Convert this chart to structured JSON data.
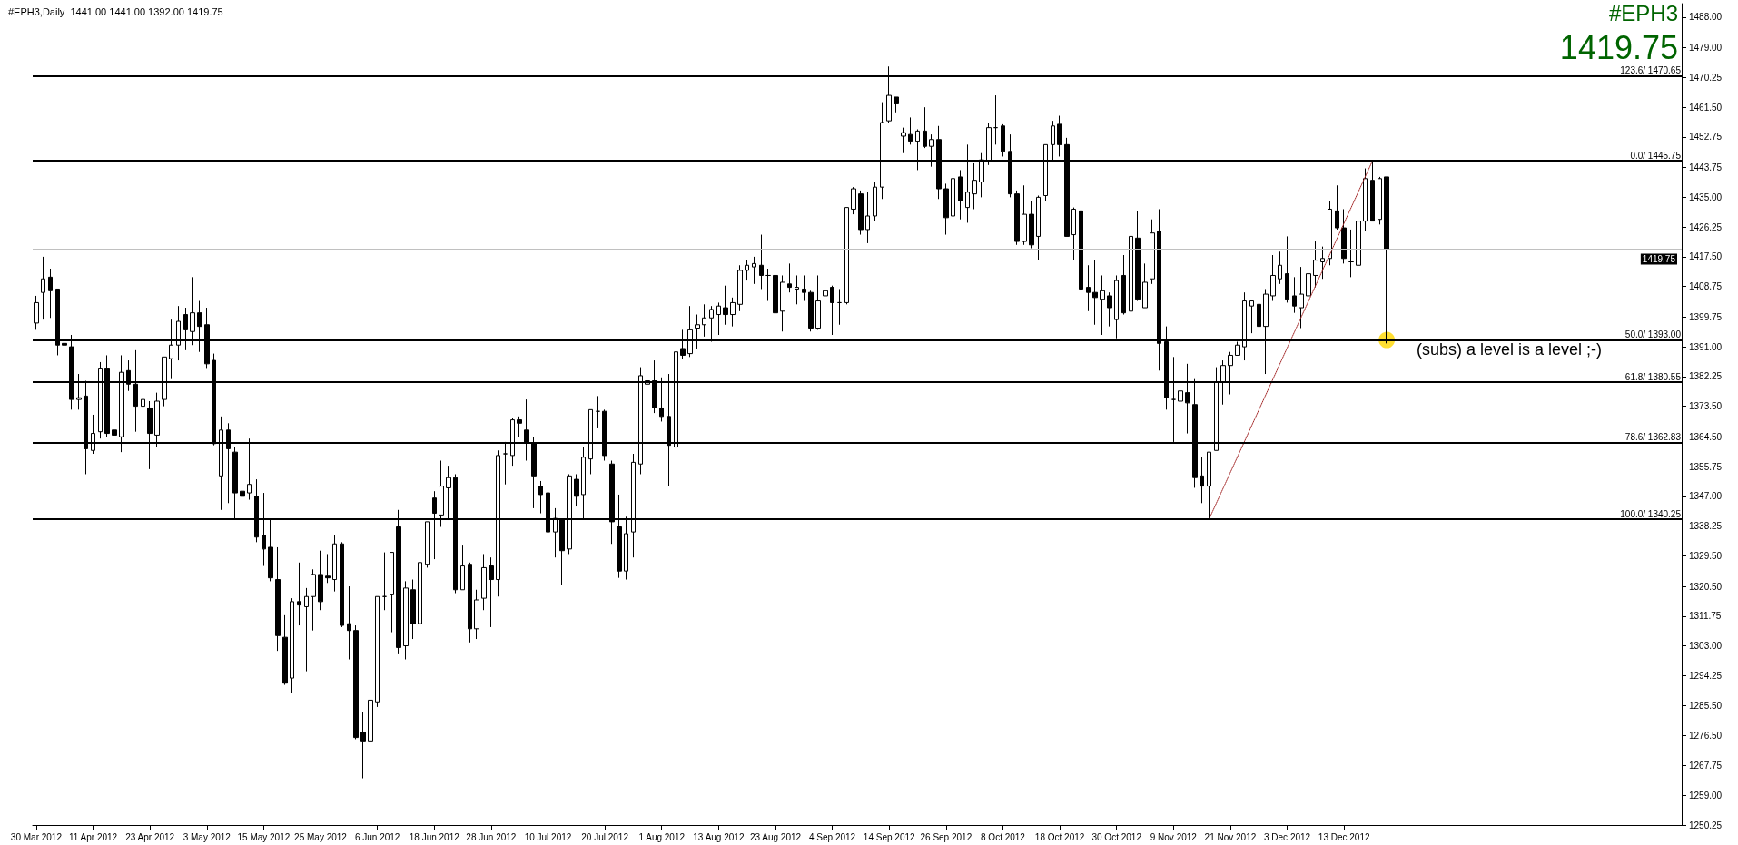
{
  "chart_data": {
    "type": "candlestick",
    "title": "#EPH3,Daily  1441.00 1441.00 1392.00 1419.75",
    "color": "#000000",
    "categories": [
      "30 Mar 2012",
      null,
      null,
      null,
      null,
      null,
      null,
      null,
      "11 Apr 2012",
      null,
      null,
      null,
      null,
      null,
      null,
      null,
      "23 Apr 2012",
      null,
      null,
      null,
      null,
      null,
      null,
      null,
      "3 May 2012",
      null,
      null,
      null,
      null,
      null,
      null,
      null,
      "15 May 2012",
      null,
      null,
      null,
      null,
      null,
      null,
      null,
      "25 May 2012",
      null,
      null,
      null,
      null,
      null,
      null,
      null,
      "6 Jun 2012",
      null,
      null,
      null,
      null,
      null,
      null,
      null,
      "18 Jun 2012",
      null,
      null,
      null,
      null,
      null,
      null,
      null,
      "28 Jun 2012",
      null,
      null,
      null,
      null,
      null,
      null,
      null,
      "10 Jul 2012",
      null,
      null,
      null,
      null,
      null,
      null,
      null,
      "20 Jul 2012",
      null,
      null,
      null,
      null,
      null,
      null,
      null,
      "1 Aug 2012",
      null,
      null,
      null,
      null,
      null,
      null,
      null,
      "13 Aug 2012",
      null,
      null,
      null,
      null,
      null,
      null,
      null,
      "23 Aug 2012",
      null,
      null,
      null,
      null,
      null,
      null,
      null,
      "4 Sep 2012",
      null,
      null,
      null,
      null,
      null,
      null,
      null,
      "14 Sep 2012",
      null,
      null,
      null,
      null,
      null,
      null,
      null,
      "26 Sep 2012",
      null,
      null,
      null,
      null,
      null,
      null,
      null,
      "8 Oct 2012",
      null,
      null,
      null,
      null,
      null,
      null,
      null,
      "18 Oct 2012",
      null,
      null,
      null,
      null,
      null,
      null,
      null,
      "30 Oct 2012",
      null,
      null,
      null,
      null,
      null,
      null,
      null,
      "9 Nov 2012",
      null,
      null,
      null,
      null,
      null,
      null,
      null,
      "21 Nov 2012",
      null,
      null,
      null,
      null,
      null,
      null,
      null,
      "3 Dec 2012",
      null,
      null,
      null,
      null,
      null,
      null,
      null,
      "13 Dec 2012",
      null,
      null,
      null,
      null,
      null,
      null,
      null,
      null,
      null,
      null,
      null,
      null,
      null,
      null,
      null,
      null,
      null,
      null,
      null,
      null,
      null,
      null,
      null,
      null,
      null,
      null,
      null,
      null,
      null,
      null,
      null,
      null,
      null,
      null,
      null,
      null,
      null,
      null,
      null,
      null,
      null,
      null,
      null,
      null,
      null,
      null,
      null
    ],
    "ohlc": [
      [
        1398,
        1406,
        1396,
        1404
      ],
      [
        1407,
        1417.5,
        1399,
        1411
      ],
      [
        1411.5,
        1414,
        1399.5,
        1407.5
      ],
      [
        1408,
        1408,
        1388.5,
        1391.5
      ],
      [
        1392,
        1397.5,
        1384.5,
        1391.5
      ],
      [
        1391,
        1394.5,
        1372.5,
        1375.5
      ],
      [
        1375.5,
        1383,
        1372.5,
        1376
      ],
      [
        1376.5,
        1381,
        1353.5,
        1361
      ],
      [
        1360.5,
        1371,
        1359.5,
        1365.5
      ],
      [
        1366,
        1386.5,
        1364,
        1384.5
      ],
      [
        1384.5,
        1388.5,
        1364.5,
        1365.5
      ],
      [
        1366.5,
        1375.5,
        1361.5,
        1365
      ],
      [
        1364.5,
        1388.5,
        1360,
        1383.5
      ],
      [
        1384,
        1387,
        1378,
        1380
      ],
      [
        1380,
        1390,
        1366,
        1373.5
      ],
      [
        1373.5,
        1383.5,
        1372,
        1375.5
      ],
      [
        1373,
        1375,
        1355,
        1365.5
      ],
      [
        1365,
        1377.5,
        1361.5,
        1375
      ],
      [
        1375.5,
        1388,
        1373.5,
        1388
      ],
      [
        1387.5,
        1399,
        1381.5,
        1391.5
      ],
      [
        1391.5,
        1403,
        1387,
        1398.5
      ],
      [
        1400.5,
        1402.5,
        1390,
        1396
      ],
      [
        1395.5,
        1411.5,
        1391.5,
        1401
      ],
      [
        1401,
        1404.5,
        1389.5,
        1397
      ],
      [
        1397.5,
        1402.5,
        1384.5,
        1386
      ],
      [
        1387,
        1389,
        1362,
        1362.5
      ],
      [
        1353,
        1370.5,
        1343,
        1366.5
      ],
      [
        1366.5,
        1368.5,
        1345,
        1361
      ],
      [
        1360,
        1361.5,
        1340.5,
        1348
      ],
      [
        1348.5,
        1364.5,
        1345,
        1347
      ],
      [
        1348,
        1364,
        1346,
        1350.5
      ],
      [
        1347,
        1352,
        1333.5,
        1335
      ],
      [
        1335.5,
        1348,
        1326.5,
        1331.5
      ],
      [
        1332,
        1340.5,
        1322,
        1323
      ],
      [
        1322.5,
        1332,
        1301.5,
        1306
      ],
      [
        1305.5,
        1312,
        1291.5,
        1292
      ],
      [
        1293.5,
        1317,
        1289,
        1316
      ],
      [
        1316,
        1327.5,
        1309,
        1315
      ],
      [
        1314.5,
        1320,
        1295.5,
        1317.5
      ],
      [
        1317.5,
        1325.5,
        1307.5,
        1324
      ],
      [
        1324,
        1331,
        1313.5,
        1316
      ],
      [
        1323.5,
        1330,
        1321.5,
        1323
      ],
      [
        1322.5,
        1335.5,
        1319,
        1333
      ],
      [
        1333,
        1333.5,
        1308.5,
        1309
      ],
      [
        1309.5,
        1320.5,
        1299,
        1307.5
      ],
      [
        1307.5,
        1309,
        1275.5,
        1276
      ],
      [
        1277.5,
        1283.5,
        1264,
        1275
      ],
      [
        1275,
        1288.5,
        1270,
        1287
      ],
      [
        1286.5,
        1317.5,
        1285,
        1317.5
      ],
      [
        1317.5,
        1330.5,
        1313.5,
        1317.5
      ],
      [
        1318,
        1330.5,
        1307,
        1330.5
      ],
      [
        1338,
        1343,
        1300.5,
        1302.5
      ],
      [
        1303,
        1322,
        1299,
        1320
      ],
      [
        1319.5,
        1322.5,
        1305,
        1309.5
      ],
      [
        1309.5,
        1329,
        1307,
        1327.5
      ],
      [
        1327,
        1339.5,
        1326,
        1339.5
      ],
      [
        1346.5,
        1348.5,
        1328.5,
        1342
      ],
      [
        1341.5,
        1357.5,
        1338,
        1350
      ],
      [
        1349.5,
        1356,
        1340,
        1352.5
      ],
      [
        1352.5,
        1353.5,
        1318.5,
        1319.5
      ],
      [
        1319.5,
        1332.5,
        1319.5,
        1326.5
      ],
      [
        1327,
        1327.5,
        1304,
        1308
      ],
      [
        1308,
        1319.5,
        1305,
        1316.5
      ],
      [
        1317,
        1330,
        1313.5,
        1326
      ],
      [
        1326.5,
        1329,
        1308.5,
        1322.5
      ],
      [
        1322.5,
        1360.5,
        1317.5,
        1359
      ],
      [
        1359.5,
        1363,
        1350.5,
        1359.5
      ],
      [
        1359,
        1370,
        1356,
        1369.5
      ],
      [
        1369.5,
        1370.5,
        1364.5,
        1368.5
      ],
      [
        1366.5,
        1375.5,
        1357.5,
        1363
      ],
      [
        1362.5,
        1364.5,
        1343.5,
        1353
      ],
      [
        1350,
        1351.5,
        1342,
        1347.5
      ],
      [
        1348,
        1357.5,
        1331.5,
        1336.5
      ],
      [
        1336.5,
        1343.5,
        1329,
        1340.5
      ],
      [
        1340,
        1340.5,
        1321,
        1331
      ],
      [
        1331.5,
        1353.5,
        1330,
        1353
      ],
      [
        1352,
        1353.5,
        1344,
        1347
      ],
      [
        1347.5,
        1361.5,
        1340.5,
        1358.5
      ],
      [
        1358,
        1372.5,
        1353.5,
        1372.5
      ],
      [
        1372,
        1376.5,
        1367,
        1372
      ],
      [
        1372,
        1372.5,
        1357.5,
        1359
      ],
      [
        1356.5,
        1357.5,
        1333,
        1339.5
      ],
      [
        1338,
        1347.5,
        1323,
        1325
      ],
      [
        1325,
        1341,
        1322.5,
        1336
      ],
      [
        1336.5,
        1359.5,
        1329,
        1357
      ],
      [
        1356.5,
        1385,
        1353.5,
        1382.5
      ],
      [
        1380,
        1388,
        1376,
        1381
      ],
      [
        1381,
        1387,
        1371.5,
        1373
      ],
      [
        1373,
        1382,
        1369,
        1370.5
      ],
      [
        1370.5,
        1383,
        1350,
        1362
      ],
      [
        1361.5,
        1390.5,
        1361,
        1389.5
      ],
      [
        1390.5,
        1396,
        1387.5,
        1388.5
      ],
      [
        1389,
        1403,
        1388,
        1396
      ],
      [
        1396.5,
        1400.5,
        1390.5,
        1397.5
      ],
      [
        1397.5,
        1403.5,
        1394,
        1399.5
      ],
      [
        1399.5,
        1403,
        1392.5,
        1402
      ],
      [
        1400.5,
        1404,
        1394.5,
        1403
      ],
      [
        1402.5,
        1409,
        1397.5,
        1400.5
      ],
      [
        1400.5,
        1405.5,
        1397,
        1404
      ],
      [
        1403.5,
        1415,
        1401.5,
        1413.5
      ],
      [
        1413.5,
        1416.5,
        1410.5,
        1415
      ],
      [
        1414.5,
        1417.5,
        1409.5,
        1415.5
      ],
      [
        1415,
        1424,
        1408,
        1412
      ],
      [
        1412,
        1414,
        1404.5,
        1412
      ],
      [
        1412,
        1417.5,
        1398,
        1401
      ],
      [
        1401.5,
        1412,
        1395.5,
        1410
      ],
      [
        1409.5,
        1415.5,
        1407,
        1408.5
      ],
      [
        1408,
        1412,
        1403.5,
        1408.5
      ],
      [
        1408,
        1412,
        1404.5,
        1407
      ],
      [
        1407,
        1407.5,
        1395.5,
        1396.5
      ],
      [
        1396.5,
        1412,
        1396,
        1404.5
      ],
      [
        1406,
        1409,
        1396.5,
        1407.5
      ],
      [
        1408.5,
        1409,
        1394.5,
        1404
      ],
      [
        1404,
        1408,
        1397.5,
        1404
      ],
      [
        1404,
        1432,
        1403.5,
        1432
      ],
      [
        1431.5,
        1438,
        1430,
        1437.5
      ],
      [
        1436,
        1437,
        1424,
        1425.5
      ],
      [
        1425.5,
        1436.5,
        1421.5,
        1429.5
      ],
      [
        1429.5,
        1439.5,
        1428,
        1438
      ],
      [
        1438,
        1463,
        1434.5,
        1457
      ],
      [
        1457.5,
        1473.5,
        1457,
        1465
      ],
      [
        1464.5,
        1464.5,
        1460,
        1462.5
      ],
      [
        1453,
        1455.5,
        1448,
        1454
      ],
      [
        1453.5,
        1458.5,
        1450.5,
        1451.5
      ],
      [
        1451.5,
        1455,
        1443,
        1454.5
      ],
      [
        1454.5,
        1461.5,
        1449.5,
        1450
      ],
      [
        1450,
        1453.5,
        1444,
        1452
      ],
      [
        1452,
        1456,
        1434.5,
        1437.5
      ],
      [
        1437.5,
        1439,
        1424,
        1429
      ],
      [
        1429.5,
        1443.5,
        1429,
        1440.5
      ],
      [
        1441,
        1443,
        1428.5,
        1434
      ],
      [
        1432,
        1450.5,
        1427.5,
        1436.5
      ],
      [
        1436,
        1445,
        1431.5,
        1440
      ],
      [
        1439.5,
        1448,
        1435,
        1446
      ],
      [
        1445.5,
        1457,
        1444.5,
        1455.5
      ],
      [
        1455.5,
        1465,
        1450.5,
        1455.5
      ],
      [
        1456,
        1456.5,
        1447,
        1448.5
      ],
      [
        1448.5,
        1453.5,
        1435,
        1436
      ],
      [
        1436,
        1437,
        1421,
        1422
      ],
      [
        1422,
        1438.5,
        1421,
        1430
      ],
      [
        1430,
        1434,
        1420,
        1421
      ],
      [
        1423.5,
        1435.5,
        1416.5,
        1435
      ],
      [
        1435.5,
        1450.5,
        1434,
        1450.5
      ],
      [
        1450.5,
        1457.5,
        1445.5,
        1456
      ],
      [
        1456.5,
        1459,
        1447,
        1450.5
      ],
      [
        1450.5,
        1452.5,
        1423.5,
        1423.5
      ],
      [
        1424,
        1432,
        1416.5,
        1431.5
      ],
      [
        1431,
        1432.5,
        1402,
        1408
      ],
      [
        1408.5,
        1415,
        1401.5,
        1407
      ],
      [
        1407,
        1416.5,
        1397.5,
        1405.5
      ],
      [
        1405,
        1412,
        1394.5,
        1407.5
      ],
      [
        1406,
        1407,
        1397,
        1402.5
      ],
      [
        1399,
        1412,
        1393.5,
        1410.5
      ],
      [
        1412,
        1418,
        1400.5,
        1401
      ],
      [
        1401.5,
        1425,
        1398.5,
        1423.5
      ],
      [
        1423,
        1431,
        1404.5,
        1405
      ],
      [
        1402.5,
        1415.5,
        1402.5,
        1410
      ],
      [
        1411,
        1428.5,
        1409.5,
        1424.5
      ],
      [
        1425,
        1431.5,
        1384,
        1392
      ],
      [
        1392.5,
        1397,
        1372.5,
        1376
      ],
      [
        1375.5,
        1388,
        1363,
        1375.5
      ],
      [
        1375,
        1381.5,
        1372,
        1378
      ],
      [
        1377.5,
        1386,
        1365.5,
        1374.5
      ],
      [
        1374,
        1381.5,
        1349.5,
        1352.5
      ],
      [
        1353,
        1358.5,
        1345,
        1350
      ],
      [
        1350,
        1360,
        1340.25,
        1360
      ],
      [
        1360.5,
        1385,
        1360.5,
        1380.5
      ],
      [
        1380.5,
        1387,
        1374,
        1385.5
      ],
      [
        1385.5,
        1389.5,
        1377,
        1388.5
      ],
      [
        1388.5,
        1392.5,
        1388.5,
        1391.5
      ],
      [
        1391,
        1407,
        1387,
        1404.5
      ],
      [
        1403,
        1404.5,
        1395,
        1404.5
      ],
      [
        1403.5,
        1407.5,
        1395.5,
        1397
      ],
      [
        1397,
        1408,
        1383,
        1406.5
      ],
      [
        1406,
        1418,
        1404.5,
        1412
      ],
      [
        1411,
        1419,
        1409.5,
        1415
      ],
      [
        1412.5,
        1423.5,
        1404,
        1405
      ],
      [
        1406,
        1411.5,
        1401,
        1403
      ],
      [
        1402.5,
        1414.5,
        1396.5,
        1406.5
      ],
      [
        1406,
        1413,
        1404.5,
        1412.5
      ],
      [
        1412,
        1422,
        1408.5,
        1416.5
      ],
      [
        1416,
        1420.5,
        1411,
        1417
      ],
      [
        1417,
        1434,
        1415,
        1431.5
      ],
      [
        1431,
        1438.5,
        1425.5,
        1426
      ],
      [
        1426,
        1431.5,
        1415.5,
        1417
      ],
      [
        1416,
        1425.5,
        1411.5,
        1416
      ],
      [
        1415,
        1428.5,
        1409,
        1428
      ],
      [
        1428,
        1443.5,
        1425,
        1440.5
      ],
      [
        1440,
        1445.75,
        1428,
        1428
      ],
      [
        1428.5,
        1441,
        1427,
        1440.5
      ],
      [
        1441,
        1441,
        1392,
        1419.75
      ],
      null,
      null,
      null,
      null,
      null,
      null,
      null,
      null,
      null,
      null,
      null,
      null,
      null,
      null,
      null,
      null,
      null,
      null,
      null,
      null,
      null,
      null,
      null,
      null,
      null,
      null,
      null,
      null,
      null,
      null,
      null,
      null,
      null,
      null,
      null,
      null,
      null,
      null,
      null,
      null,
      null
    ],
    "series": [
      {
        "type": "line",
        "color": "#a52a2a",
        "line_style": "dotted",
        "values": [
          null,
          null,
          null,
          null,
          null,
          null,
          null,
          null,
          null,
          null,
          null,
          null,
          null,
          null,
          null,
          null,
          null,
          null,
          null,
          null,
          null,
          null,
          null,
          null,
          null,
          null,
          null,
          null,
          null,
          null,
          null,
          null,
          null,
          null,
          null,
          null,
          null,
          null,
          null,
          null,
          null,
          null,
          null,
          null,
          null,
          null,
          null,
          null,
          null,
          null,
          null,
          null,
          null,
          null,
          null,
          null,
          null,
          null,
          null,
          null,
          null,
          null,
          null,
          null,
          null,
          null,
          null,
          null,
          null,
          null,
          null,
          null,
          null,
          null,
          null,
          null,
          null,
          null,
          null,
          null,
          null,
          null,
          null,
          null,
          null,
          null,
          null,
          null,
          null,
          null,
          null,
          null,
          null,
          null,
          null,
          null,
          null,
          null,
          null,
          null,
          null,
          null,
          null,
          null,
          null,
          null,
          null,
          null,
          null,
          null,
          null,
          null,
          null,
          null,
          null,
          null,
          null,
          null,
          null,
          null,
          null,
          null,
          null,
          null,
          null,
          null,
          null,
          null,
          null,
          null,
          null,
          null,
          null,
          null,
          null,
          null,
          null,
          null,
          null,
          null,
          null,
          null,
          null,
          null,
          null,
          null,
          null,
          null,
          null,
          null,
          null,
          null,
          null,
          null,
          null,
          null,
          null,
          null,
          null,
          null,
          null,
          null,
          null,
          null,
          null,
          1340.25,
          null,
          null,
          null,
          null,
          null,
          null,
          null,
          null,
          null,
          null,
          null,
          null,
          null,
          null,
          null,
          null,
          null,
          null,
          null,
          null,
          null,
          null,
          1445.75,
          null,
          null,
          null,
          null,
          null,
          null,
          null,
          null,
          null,
          null,
          null,
          null,
          null,
          null,
          null,
          null,
          null,
          null,
          null,
          null,
          null,
          null,
          null,
          null,
          null,
          null,
          null,
          null,
          null,
          null,
          null,
          null,
          null,
          null,
          null,
          null,
          null,
          null,
          null,
          null,
          null,
          null,
          null
        ]
      },
      {
        "type": "scatter",
        "color": "#ffd700",
        "marker": "circle",
        "values": [
          null,
          null,
          null,
          null,
          null,
          null,
          null,
          null,
          null,
          null,
          null,
          null,
          null,
          null,
          null,
          null,
          null,
          null,
          null,
          null,
          null,
          null,
          null,
          null,
          null,
          null,
          null,
          null,
          null,
          null,
          null,
          null,
          null,
          null,
          null,
          null,
          null,
          null,
          null,
          null,
          null,
          null,
          null,
          null,
          null,
          null,
          null,
          null,
          null,
          null,
          null,
          null,
          null,
          null,
          null,
          null,
          null,
          null,
          null,
          null,
          null,
          null,
          null,
          null,
          null,
          null,
          null,
          null,
          null,
          null,
          null,
          null,
          null,
          null,
          null,
          null,
          null,
          null,
          null,
          null,
          null,
          null,
          null,
          null,
          null,
          null,
          null,
          null,
          null,
          null,
          null,
          null,
          null,
          null,
          null,
          null,
          null,
          null,
          null,
          null,
          null,
          null,
          null,
          null,
          null,
          null,
          null,
          null,
          null,
          null,
          null,
          null,
          null,
          null,
          null,
          null,
          null,
          null,
          null,
          null,
          null,
          null,
          null,
          null,
          null,
          null,
          null,
          null,
          null,
          null,
          null,
          null,
          null,
          null,
          null,
          null,
          null,
          null,
          null,
          null,
          null,
          null,
          null,
          null,
          null,
          null,
          null,
          null,
          null,
          null,
          null,
          null,
          null,
          null,
          null,
          null,
          null,
          null,
          null,
          null,
          null,
          null,
          null,
          null,
          null,
          null,
          null,
          null,
          null,
          null,
          null,
          null,
          null,
          null,
          null,
          null,
          null,
          null,
          null,
          null,
          null,
          null,
          null,
          null,
          null,
          null,
          null,
          null,
          null,
          null,
          1393,
          null,
          null,
          null,
          null,
          null,
          null,
          null,
          null,
          null,
          null,
          null,
          null,
          null,
          null,
          null,
          null,
          null,
          null,
          null,
          null,
          null,
          null,
          null,
          null,
          null,
          null,
          null,
          null,
          null,
          null,
          null,
          null,
          null,
          null,
          null,
          null,
          null,
          null,
          null,
          null,
          null
        ]
      }
    ],
    "ylim": [
      1250.25,
      1492
    ],
    "yticks": [
      {
        "value": 1488,
        "label": "1488.00"
      },
      {
        "value": 1479,
        "label": "1479.00"
      },
      1470.25,
      {
        "value": 1461.5,
        "label": "1461.50"
      },
      1452.75,
      1443.75,
      {
        "value": 1435,
        "label": "1435.00"
      },
      1426.25,
      {
        "value": 1417.5,
        "label": "1417.50"
      },
      1408.75,
      1399.75,
      {
        "value": 1391,
        "label": "1391.00"
      },
      1382.25,
      {
        "value": 1373.5,
        "label": "1373.50"
      },
      {
        "value": 1364.5,
        "label": "1364.50"
      },
      1355.75,
      {
        "value": 1347,
        "label": "1347.00"
      },
      1338.25,
      {
        "value": 1329.5,
        "label": "1329.50"
      },
      {
        "value": 1320.5,
        "label": "1320.50"
      },
      1311.75,
      {
        "value": 1303,
        "label": "1303.00"
      },
      1294.25,
      {
        "value": 1285.5,
        "label": "1285.50"
      },
      {
        "value": 1276.5,
        "label": "1276.50"
      },
      1267.75,
      {
        "value": 1259,
        "label": "1259.00"
      },
      1250.25
    ],
    "ref_lines": [
      {
        "axis": "y",
        "value": 1419.75,
        "label": "1419.75",
        "color": "#c0c0c0"
      },
      {
        "axis": "y",
        "value": 1470.65,
        "label": "123.6/ 1470.65"
      },
      {
        "axis": "y",
        "value": 1445.75,
        "label": "0.0/ 1445.75"
      },
      {
        "axis": "y",
        "value": 1393,
        "label": "50.0/ 1393.00"
      },
      {
        "axis": "y",
        "value": 1380.55,
        "label": "61.8/ 1380.55"
      },
      {
        "axis": "y",
        "value": 1362.83,
        "label": "78.6/ 1362.83"
      },
      {
        "axis": "y",
        "value": 1340.25,
        "label": "100.0/ 1340.25"
      }
    ],
    "annotations": [
      "#EPH3",
      "1419.75",
      "(subs) a level is a level ;-)"
    ],
    "grid": false
  }
}
